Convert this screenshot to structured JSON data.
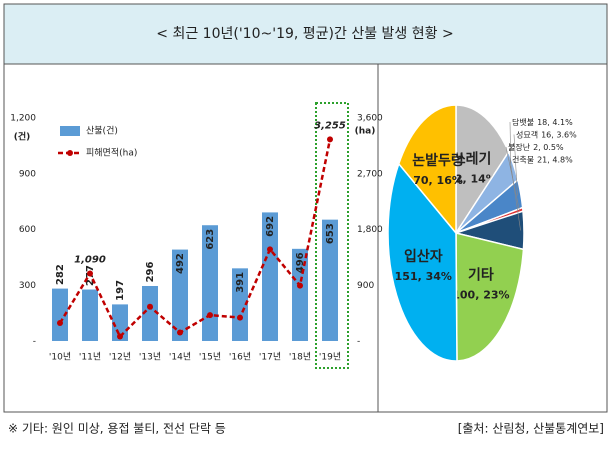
{
  "header": {
    "title": "< 최근 10년('10~'19, 평균)간 산불 발생 현황 >"
  },
  "chart_data": [
    {
      "type": "bar",
      "categories": [
        "'10년",
        "'11년",
        "'12년",
        "'13년",
        "'14년",
        "'15년",
        "'16년",
        "'17년",
        "'18년",
        "'19년"
      ],
      "series": [
        {
          "name": "산불(건)",
          "color": "#5b9bd5",
          "values": [
            282,
            277,
            197,
            296,
            492,
            623,
            391,
            692,
            496,
            653
          ]
        },
        {
          "name": "피해면적(ha)",
          "color": "#c00000",
          "type": "line",
          "axis": "y2",
          "values": [
            290,
            1090,
            72,
            552,
            137,
            418,
            378,
            1480,
            894,
            3255
          ],
          "value_labels": [
            null,
            "1,090",
            null,
            null,
            null,
            null,
            null,
            null,
            null,
            "3,255"
          ]
        }
      ],
      "ylabel": "(건)",
      "y2label": "(ha)",
      "ylim": [
        0,
        1200
      ],
      "yticks": [
        {
          "value": 0,
          "label": "-"
        },
        300,
        600,
        900,
        {
          "value": 1200,
          "label": "1,200"
        }
      ],
      "y2lim": [
        0,
        3600
      ],
      "y2ticks": [
        {
          "value": 0,
          "label": "-"
        },
        900,
        {
          "value": 1800,
          "label": "1,800"
        },
        {
          "value": 2700,
          "label": "2,700"
        },
        {
          "value": 3600,
          "label": "3,600"
        }
      ],
      "legend": "upper left"
    },
    {
      "type": "pie",
      "categories": [
        "쓰레기",
        "담뱃불",
        "성묘객",
        "불장난",
        "건축물",
        "기타",
        "입산자",
        "논밭두렁"
      ],
      "values": [
        62,
        18,
        16,
        2,
        21,
        100,
        151,
        70
      ],
      "value_labels": [
        "62, 14%",
        "18, 4.1%",
        "16, 3.6%",
        "2, 0.5%",
        "21, 4.8%",
        "100, 23%",
        "151, 34%",
        "70, 16%"
      ],
      "colors": [
        "#bfbfbf",
        "#8eb4e3",
        "#4a86c8",
        "#e03030",
        "#1f4e79",
        "#92d050",
        "#00b0f0",
        "#ffc000"
      ]
    }
  ],
  "footer": {
    "note": "※ 기타: 원인 미상, 용접 불티, 전선 단락 등",
    "source": "[출처: 산림청, 산불통계연보]"
  }
}
